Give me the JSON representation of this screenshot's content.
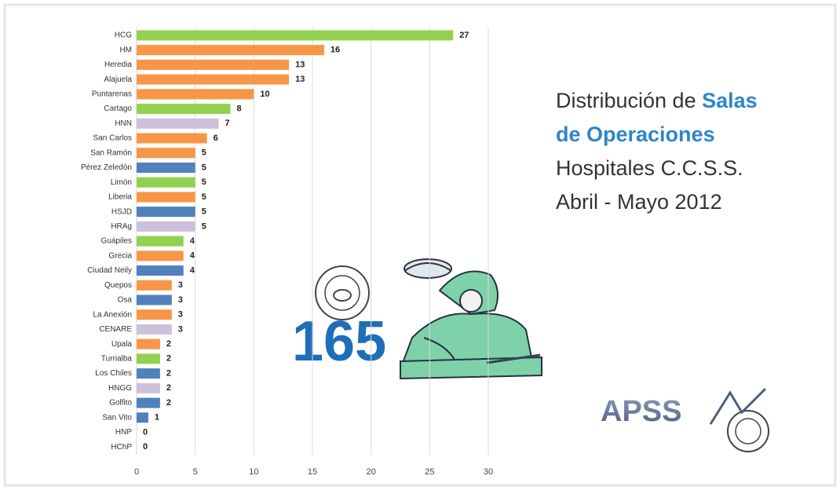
{
  "chart_data": {
    "type": "bar",
    "orientation": "horizontal",
    "categories": [
      "HCG",
      "HM",
      "Heredia",
      "Alajuela",
      "Puntarenas",
      "Cartago",
      "HNN",
      "San Carlos",
      "San Ramón",
      "Pérez Zeledón",
      "Limón",
      "Liberia",
      "HSJD",
      "HRAg",
      "Guápiles",
      "Grecia",
      "Ciudad Neily",
      "Quepos",
      "Osa",
      "La Anexión",
      "CENARE",
      "Upala",
      "Turrialba",
      "Los Chiles",
      "HNGG",
      "Golfito",
      "San Vito",
      "HNP",
      "HChP"
    ],
    "values": [
      27,
      16,
      13,
      13,
      10,
      8,
      7,
      6,
      5,
      5,
      5,
      5,
      5,
      5,
      4,
      4,
      4,
      3,
      3,
      3,
      3,
      2,
      2,
      2,
      2,
      2,
      1,
      0,
      0
    ],
    "colors": [
      "#92d050",
      "#f79646",
      "#f79646",
      "#f79646",
      "#f79646",
      "#92d050",
      "#ccc0da",
      "#f79646",
      "#f79646",
      "#4f81bd",
      "#92d050",
      "#f79646",
      "#4f81bd",
      "#ccc0da",
      "#92d050",
      "#f79646",
      "#4f81bd",
      "#f79646",
      "#4f81bd",
      "#f79646",
      "#ccc0da",
      "#f79646",
      "#92d050",
      "#4f81bd",
      "#ccc0da",
      "#4f81bd",
      "#4f81bd",
      "#4f81bd",
      "#4f81bd"
    ],
    "xlim": [
      0,
      30
    ],
    "xticks": [
      0,
      5,
      10,
      15,
      20,
      25,
      30
    ],
    "grid": true,
    "title_lines": [
      [
        {
          "text": "Distribución de ",
          "color": "#333333"
        },
        {
          "text": "Salas",
          "color": "#2e86c9"
        }
      ],
      [
        {
          "text": "de Operaciones",
          "color": "#2e86c9"
        }
      ],
      [
        {
          "text": "Hospitales C.C.S.S.",
          "color": "#333333"
        }
      ],
      [
        {
          "text": "Abril - Mayo 2012",
          "color": "#333333"
        }
      ]
    ],
    "total": 165,
    "logo": "APSS"
  }
}
